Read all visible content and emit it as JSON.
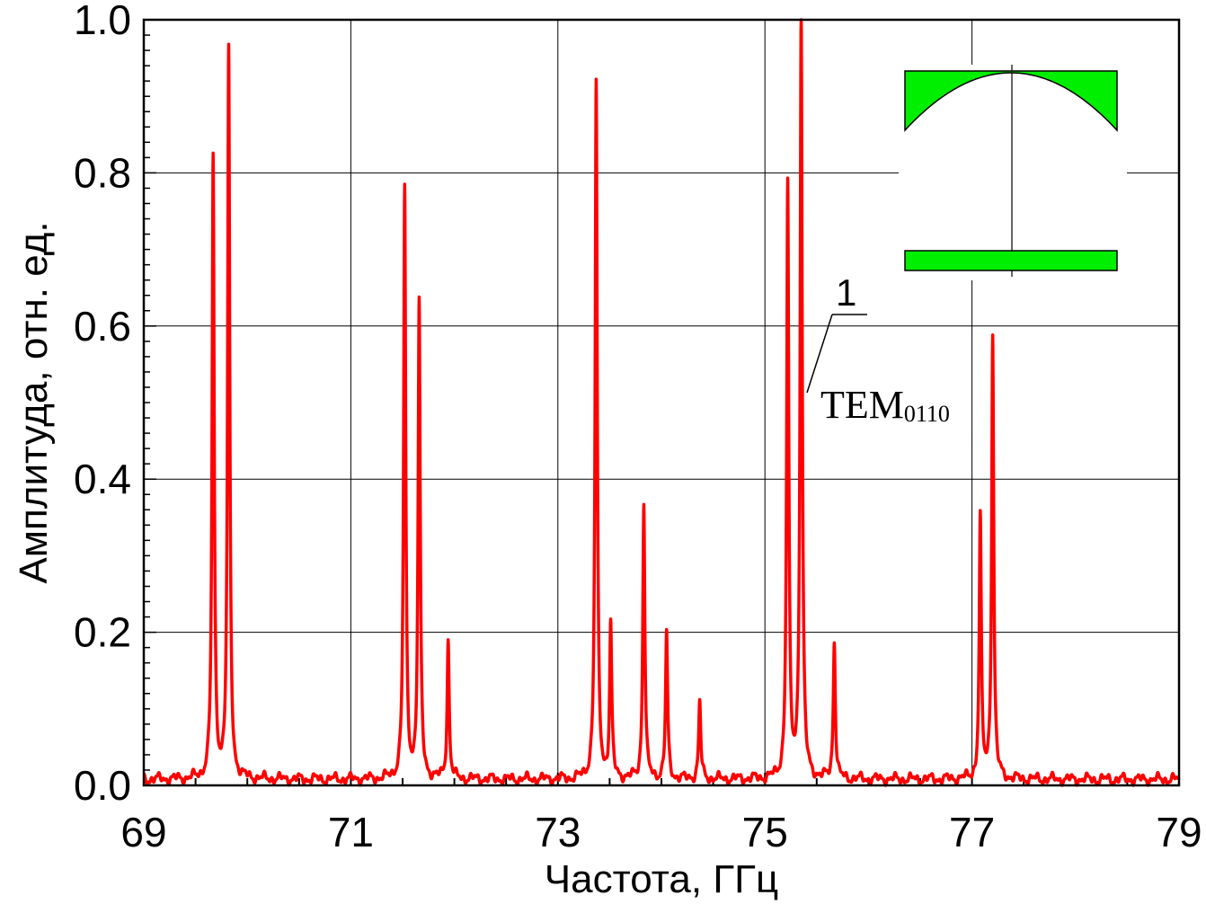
{
  "chart_data": {
    "type": "line",
    "title": "",
    "xlabel": "Частота, ГГц",
    "ylabel": "Амплитуда,  отн. ед.",
    "xlim": [
      69,
      79
    ],
    "ylim": [
      0,
      1
    ],
    "x_ticks": [
      69,
      71,
      73,
      75,
      77,
      79
    ],
    "x_tick_labels": [
      "69",
      "71",
      "73",
      "75",
      "77",
      "79"
    ],
    "y_ticks": [
      0,
      0.2,
      0.4,
      0.6,
      0.8,
      1.0
    ],
    "y_tick_labels": [
      "0.0",
      "0.2",
      "0.4",
      "0.6",
      "0.8",
      "1.0"
    ],
    "grid": true,
    "baseline": 0.008,
    "series": [
      {
        "color": "#ff0000",
        "peaks": [
          {
            "x": 69.67,
            "y": 0.81
          },
          {
            "x": 69.82,
            "y": 0.95
          },
          {
            "x": 71.52,
            "y": 0.77
          },
          {
            "x": 71.66,
            "y": 0.62
          },
          {
            "x": 71.94,
            "y": 0.18
          },
          {
            "x": 73.37,
            "y": 0.91
          },
          {
            "x": 73.51,
            "y": 0.2
          },
          {
            "x": 73.83,
            "y": 0.36
          },
          {
            "x": 74.05,
            "y": 0.19
          },
          {
            "x": 74.37,
            "y": 0.1
          },
          {
            "x": 75.22,
            "y": 0.775
          },
          {
            "x": 75.35,
            "y": 1.0
          },
          {
            "x": 75.67,
            "y": 0.18
          },
          {
            "x": 77.08,
            "y": 0.34
          },
          {
            "x": 77.2,
            "y": 0.58
          }
        ]
      }
    ],
    "annotations": {
      "curve_label": "1",
      "mode_label": "TEM",
      "mode_subscript": "0110"
    },
    "inset": {
      "fill_color": "#00ee00",
      "outline_color": "#000000"
    }
  }
}
